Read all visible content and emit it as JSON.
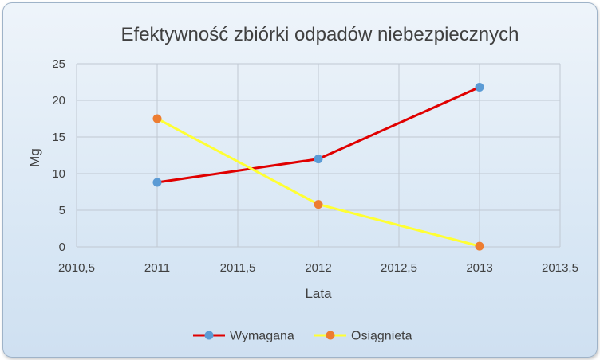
{
  "chart_data": {
    "type": "scatter",
    "title": "Efektywność zbiórki odpadów niebezpiecznych",
    "xlabel": "Lata",
    "ylabel": "Mg",
    "xlim": [
      2010.5,
      2013.5
    ],
    "ylim": [
      0,
      25
    ],
    "x_ticks": [
      "2010,5",
      "2011",
      "2011,5",
      "2012",
      "2012,5",
      "2013",
      "2013,5"
    ],
    "y_ticks": [
      "0",
      "5",
      "10",
      "15",
      "20",
      "25"
    ],
    "grid": true,
    "legend_position": "bottom",
    "series": [
      {
        "name": "Wymagana",
        "x": [
          2011,
          2012,
          2013
        ],
        "y": [
          8.8,
          12.0,
          21.8
        ],
        "line_color": "#e00000",
        "marker_color": "#5b9bd5"
      },
      {
        "name": "Osiągnieta",
        "x": [
          2011,
          2012,
          2013
        ],
        "y": [
          17.5,
          5.8,
          0.1
        ],
        "line_color": "#ffff33",
        "marker_color": "#ed7d31"
      }
    ]
  }
}
